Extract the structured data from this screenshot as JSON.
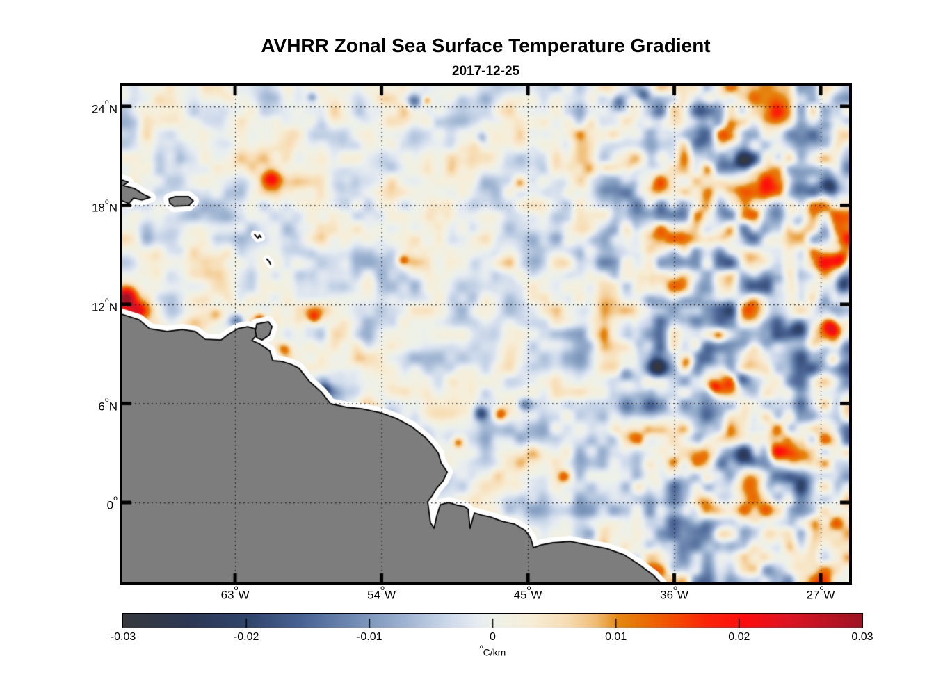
{
  "figure": {
    "title": "AVHRR Zonal Sea Surface Temperature Gradient",
    "subtitle": "2017-12-25",
    "background": "#ffffff"
  },
  "chart_data": {
    "type": "heatmap",
    "title": "AVHRR Zonal Sea Surface Temperature Gradient",
    "date": "2017-12-25",
    "variable": "zonal sea surface temperature gradient",
    "units": {
      "deg": "o",
      "text": "C/km"
    },
    "extent": {
      "lon_min": -69.93,
      "lon_max": -25.25,
      "lat_min": -4.84,
      "lat_max": 25.22
    },
    "x_ticks": [
      {
        "value": -63,
        "num": "63",
        "deg": "o",
        "hemi": "W"
      },
      {
        "value": -54,
        "num": "54",
        "deg": "o",
        "hemi": "W"
      },
      {
        "value": -45,
        "num": "45",
        "deg": "o",
        "hemi": "W"
      },
      {
        "value": -36,
        "num": "36",
        "deg": "o",
        "hemi": "W"
      },
      {
        "value": -27,
        "num": "27",
        "deg": "o",
        "hemi": "W"
      }
    ],
    "y_ticks": [
      {
        "value": 24,
        "num": "24",
        "deg": "o",
        "hemi": "N"
      },
      {
        "value": 18,
        "num": "18",
        "deg": "o",
        "hemi": "N"
      },
      {
        "value": 12,
        "num": "12",
        "deg": "o",
        "hemi": "N"
      },
      {
        "value": 6,
        "num": "6",
        "deg": "o",
        "hemi": "N"
      },
      {
        "value": 0,
        "num": "0",
        "deg": "o",
        "hemi": ""
      }
    ],
    "grid": {
      "style": "dotted",
      "color": "#141414"
    },
    "colorbar": {
      "orientation": "horizontal",
      "min": -0.03,
      "max": 0.03,
      "ticks": [
        {
          "value": -0.03,
          "label": "-0.03"
        },
        {
          "value": -0.02,
          "label": "-0.02"
        },
        {
          "value": -0.01,
          "label": "-0.01"
        },
        {
          "value": 0,
          "label": "0"
        },
        {
          "value": 0.01,
          "label": "0.01"
        },
        {
          "value": 0.02,
          "label": "0.02"
        },
        {
          "value": 0.03,
          "label": "0.03"
        }
      ]
    },
    "colormap": [
      {
        "t": 0.0,
        "color": "#36383c"
      },
      {
        "t": 0.09,
        "color": "#2c3854"
      },
      {
        "t": 0.17,
        "color": "#30456c"
      },
      {
        "t": 0.24,
        "color": "#486293"
      },
      {
        "t": 0.31,
        "color": "#6f8ab2"
      },
      {
        "t": 0.38,
        "color": "#9db3d1"
      },
      {
        "t": 0.44,
        "color": "#cdd9eb"
      },
      {
        "t": 0.48,
        "color": "#e7ecf1"
      },
      {
        "t": 0.5,
        "color": "#edf1ea"
      },
      {
        "t": 0.55,
        "color": "#f7eed8"
      },
      {
        "t": 0.6,
        "color": "#f7ddb4"
      },
      {
        "t": 0.64,
        "color": "#f0bc74"
      },
      {
        "t": 0.67,
        "color": "#e4870f"
      },
      {
        "t": 0.73,
        "color": "#f05a00"
      },
      {
        "t": 0.79,
        "color": "#fb2408"
      },
      {
        "t": 0.84,
        "color": "#fd0d0d"
      },
      {
        "t": 0.9,
        "color": "#dc1423"
      },
      {
        "t": 1.0,
        "color": "#9e1423"
      }
    ],
    "land_color": "#7d7d7d",
    "coast_outline_color": "#000000",
    "nodata_halo_color": "#ffffff",
    "land_polygons": {
      "mainland": [
        [
          -70.5,
          11.45
        ],
        [
          -69.97,
          11.41
        ],
        [
          -68.9,
          11.07
        ],
        [
          -68.26,
          10.53
        ],
        [
          -67.19,
          10.36
        ],
        [
          -66.25,
          10.48
        ],
        [
          -65.44,
          10.36
        ],
        [
          -64.84,
          9.89
        ],
        [
          -63.86,
          9.85
        ],
        [
          -63.34,
          10.23
        ],
        [
          -62.83,
          10.53
        ],
        [
          -62.23,
          10.65
        ],
        [
          -61.8,
          10.53
        ],
        [
          -61.63,
          10.19
        ],
        [
          -61.97,
          9.81
        ],
        [
          -61.55,
          9.64
        ],
        [
          -60.86,
          9.18
        ],
        [
          -60.69,
          8.59
        ],
        [
          -60.18,
          8.55
        ],
        [
          -59.58,
          8.38
        ],
        [
          -59.07,
          8.13
        ],
        [
          -58.43,
          7.33
        ],
        [
          -57.7,
          6.69
        ],
        [
          -57.14,
          5.98
        ],
        [
          -56.16,
          5.77
        ],
        [
          -55.22,
          5.68
        ],
        [
          -54.02,
          5.43
        ],
        [
          -53.08,
          5.09
        ],
        [
          -52.14,
          4.59
        ],
        [
          -51.28,
          3.92
        ],
        [
          -50.86,
          3.45
        ],
        [
          -50.51,
          2.99
        ],
        [
          -50.34,
          2.4
        ],
        [
          -49.96,
          1.85
        ],
        [
          -50.21,
          1.31
        ],
        [
          -50.6,
          0.88
        ],
        [
          -50.94,
          0.34
        ],
        [
          -51.16,
          0.04
        ],
        [
          -50.99,
          -1.22
        ],
        [
          -50.77,
          -1.56
        ],
        [
          -50.6,
          -0.8
        ],
        [
          -50.38,
          -0.13
        ],
        [
          -49.87,
          0.0
        ],
        [
          -49.32,
          -0.17
        ],
        [
          -48.89,
          -0.25
        ],
        [
          -48.67,
          -0.42
        ],
        [
          -48.55,
          -1.56
        ],
        [
          -48.29,
          -0.63
        ],
        [
          -47.86,
          -0.76
        ],
        [
          -47.31,
          -0.88
        ],
        [
          -46.58,
          -1.14
        ],
        [
          -45.81,
          -1.31
        ],
        [
          -45.17,
          -1.68
        ],
        [
          -44.83,
          -2.15
        ],
        [
          -44.66,
          -2.74
        ],
        [
          -44.19,
          -2.57
        ],
        [
          -43.46,
          -2.44
        ],
        [
          -42.39,
          -2.36
        ],
        [
          -41.32,
          -2.57
        ],
        [
          -40.17,
          -2.78
        ],
        [
          -39.1,
          -3.16
        ],
        [
          -38.12,
          -3.79
        ],
        [
          -37.26,
          -4.42
        ],
        [
          -36.79,
          -4.93
        ],
        [
          -36.45,
          -5.5
        ],
        [
          -70.5,
          -5.5
        ]
      ],
      "hispaniola": [
        [
          -70.2,
          19.62
        ],
        [
          -69.58,
          19.41
        ],
        [
          -69.88,
          19.2
        ],
        [
          -69.2,
          19.03
        ],
        [
          -68.6,
          18.65
        ],
        [
          -68.22,
          18.48
        ],
        [
          -68.73,
          18.32
        ],
        [
          -69.24,
          18.44
        ],
        [
          -69.54,
          18.11
        ],
        [
          -69.93,
          18.27
        ],
        [
          -70.2,
          18.15
        ]
      ],
      "puerto_rico": [
        [
          -67.06,
          18.4
        ],
        [
          -66.68,
          18.53
        ],
        [
          -65.86,
          18.53
        ],
        [
          -65.57,
          18.27
        ],
        [
          -65.86,
          17.98
        ],
        [
          -66.76,
          17.94
        ],
        [
          -67.02,
          18.15
        ]
      ],
      "trinidad": [
        [
          -61.67,
          10.82
        ],
        [
          -60.95,
          10.95
        ],
        [
          -60.73,
          10.65
        ],
        [
          -60.9,
          10.15
        ],
        [
          -61.33,
          9.85
        ],
        [
          -61.67,
          9.98
        ],
        [
          -61.76,
          10.4
        ]
      ]
    },
    "islets": [
      [
        [
          -61.8,
          16.25
        ],
        [
          -61.6,
          16.0
        ],
        [
          -61.5,
          16.2
        ],
        [
          -61.4,
          16.05
        ]
      ],
      [
        [
          -61.05,
          14.75
        ],
        [
          -60.9,
          14.6
        ],
        [
          -60.82,
          14.42
        ]
      ]
    ],
    "field": {
      "seed": 11,
      "base_scale": 0.0066,
      "east_boost": {
        "start_lon": -48,
        "end_lon": -31,
        "factor": 1.25
      },
      "octaves": [
        {
          "cells": 30,
          "amp": 1.0
        },
        {
          "cells": 62,
          "amp": 0.5
        }
      ]
    },
    "features": [
      {
        "lon": -69.7,
        "lat": 12.4,
        "v": 0.027,
        "r": 0.45
      },
      {
        "lon": -69.05,
        "lat": 11.6,
        "v": 0.016,
        "r": 0.38
      },
      {
        "lon": -64.2,
        "lat": 11.4,
        "v": 0.01,
        "r": 0.35
      },
      {
        "lon": -62.9,
        "lat": 11.0,
        "v": -0.013,
        "r": 0.32
      },
      {
        "lon": -61.5,
        "lat": 11.15,
        "v": 0.013,
        "r": 0.26
      },
      {
        "lon": -60.0,
        "lat": 9.3,
        "v": 0.011,
        "r": 0.3
      },
      {
        "lon": -58.2,
        "lat": 11.2,
        "v": 0.013,
        "r": 0.3
      },
      {
        "lon": -57.5,
        "lat": 6.8,
        "v": -0.014,
        "r": 0.3
      },
      {
        "lon": -60.8,
        "lat": 19.65,
        "v": 0.015,
        "r": 0.4
      },
      {
        "lon": -58.3,
        "lat": 24.6,
        "v": -0.011,
        "r": 0.25
      },
      {
        "lon": -52.7,
        "lat": 14.7,
        "v": 0.012,
        "r": 0.24
      },
      {
        "lon": -52.0,
        "lat": 24.35,
        "v": -0.014,
        "r": 0.3
      },
      {
        "lon": -51.2,
        "lat": 24.4,
        "v": 0.011,
        "r": 0.2
      },
      {
        "lon": -47.8,
        "lat": 22.2,
        "v": -0.011,
        "r": 0.3
      },
      {
        "lon": -45.5,
        "lat": 19.4,
        "v": 0.01,
        "r": 0.3
      },
      {
        "lon": -40.2,
        "lat": 20.3,
        "v": 0.009,
        "r": 0.3
      },
      {
        "lon": -39.4,
        "lat": 24.3,
        "v": -0.015,
        "r": 0.33
      },
      {
        "lon": -37.9,
        "lat": 24.75,
        "v": -0.012,
        "r": 0.28
      },
      {
        "lon": -31.6,
        "lat": 20.7,
        "v": -0.016,
        "r": 0.42
      },
      {
        "lon": -28.4,
        "lat": 16.9,
        "v": -0.012,
        "r": 0.36
      },
      {
        "lon": -26.3,
        "lat": 19.2,
        "v": -0.019,
        "r": 0.5
      },
      {
        "lon": -25.7,
        "lat": 14.8,
        "v": 0.02,
        "r": 0.4
      },
      {
        "lon": -25.5,
        "lat": 13.2,
        "v": -0.013,
        "r": 0.32
      },
      {
        "lon": -28.3,
        "lat": 10.6,
        "v": -0.016,
        "r": 0.4
      },
      {
        "lon": -26.2,
        "lat": 10.7,
        "v": 0.021,
        "r": 0.4
      },
      {
        "lon": -26.2,
        "lat": 8.6,
        "v": 0.013,
        "r": 0.32
      },
      {
        "lon": -33.2,
        "lat": 10.1,
        "v": 0.014,
        "r": 0.33
      },
      {
        "lon": -31.9,
        "lat": 7.6,
        "v": -0.012,
        "r": 0.34
      },
      {
        "lon": -33.5,
        "lat": 7.0,
        "v": 0.013,
        "r": 0.3
      },
      {
        "lon": -35.2,
        "lat": 8.6,
        "v": 0.02,
        "r": 0.36
      },
      {
        "lon": -37.0,
        "lat": 8.2,
        "v": -0.018,
        "r": 0.4
      },
      {
        "lon": -38.9,
        "lat": 7.7,
        "v": -0.013,
        "r": 0.36
      },
      {
        "lon": -45.2,
        "lat": 5.9,
        "v": -0.011,
        "r": 0.3
      },
      {
        "lon": -47.9,
        "lat": 5.4,
        "v": -0.015,
        "r": 0.3
      },
      {
        "lon": -46.7,
        "lat": 5.3,
        "v": 0.013,
        "r": 0.3
      },
      {
        "lon": -49.3,
        "lat": 3.6,
        "v": 0.012,
        "r": 0.26
      },
      {
        "lon": -42.8,
        "lat": 1.5,
        "v": 0.011,
        "r": 0.28
      },
      {
        "lon": -33.9,
        "lat": 1.4,
        "v": 0.012,
        "r": 0.27
      },
      {
        "lon": -31.6,
        "lat": 2.9,
        "v": -0.018,
        "r": 0.42
      },
      {
        "lon": -29.6,
        "lat": 3.0,
        "v": 0.022,
        "r": 0.4
      }
    ]
  }
}
